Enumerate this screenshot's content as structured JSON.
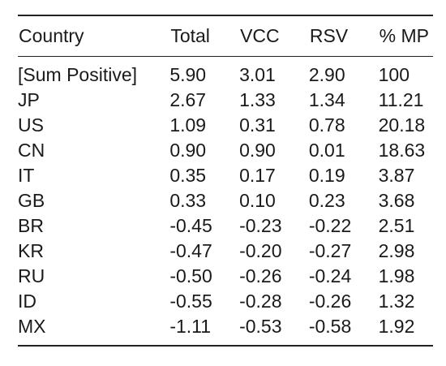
{
  "table": {
    "headers": [
      "Country",
      "Total",
      "VCC",
      "RSV",
      "% MP"
    ],
    "rows": [
      [
        "[Sum Positive]",
        "5.90",
        "3.01",
        "2.90",
        "100"
      ],
      [
        "JP",
        "2.67",
        "1.33",
        "1.34",
        "11.21"
      ],
      [
        "US",
        "1.09",
        "0.31",
        "0.78",
        "20.18"
      ],
      [
        "CN",
        "0.90",
        "0.90",
        "0.01",
        "18.63"
      ],
      [
        "IT",
        "0.35",
        "0.17",
        "0.19",
        "3.87"
      ],
      [
        "GB",
        "0.33",
        "0.10",
        "0.23",
        "3.68"
      ],
      [
        "BR",
        "-0.45",
        "-0.23",
        "-0.22",
        "2.51"
      ],
      [
        "KR",
        "-0.47",
        "-0.20",
        "-0.27",
        "2.98"
      ],
      [
        "RU",
        "-0.50",
        "-0.26",
        "-0.24",
        "1.98"
      ],
      [
        "ID",
        "-0.55",
        "-0.28",
        "-0.26",
        "1.32"
      ],
      [
        "MX",
        "-1.11",
        "-0.53",
        "-0.58",
        "1.92"
      ]
    ]
  }
}
